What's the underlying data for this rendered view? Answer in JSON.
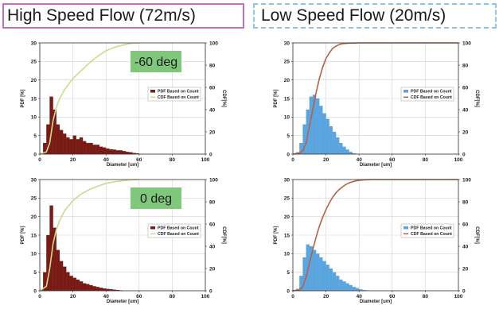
{
  "titles": {
    "left": "High Speed Flow (72m/s)",
    "right": "Low Speed Flow (20m/s)"
  },
  "chart_data": [
    {
      "type": "bar",
      "panel": "top-left",
      "xlabel": "Diameter [um]",
      "ylabel_left": "PDF [%]",
      "ylabel_right": "CDF[%]",
      "xlim": [
        0,
        100
      ],
      "ylim_left": [
        0,
        30
      ],
      "ylim_right": [
        0,
        100
      ],
      "x_ticks": [
        0,
        20,
        40,
        60,
        80,
        100
      ],
      "y_ticks_left": [
        0,
        5,
        10,
        15,
        20,
        25,
        30
      ],
      "y_ticks_right": [
        0,
        20,
        40,
        60,
        80,
        100
      ],
      "grid": true,
      "legend_position": "middle-right",
      "annotation": "-60 deg",
      "annotation_color": "#7fc77a",
      "bin_width": 2,
      "series": [
        {
          "name": "PDF Based on Count",
          "kind": "bar",
          "color": "#7a1a14",
          "x": [
            1,
            3,
            5,
            7,
            9,
            11,
            13,
            15,
            17,
            19,
            21,
            23,
            25,
            27,
            29,
            31,
            33,
            35,
            37,
            39,
            41,
            43,
            45,
            47,
            49,
            51,
            53,
            55,
            57,
            59
          ],
          "values": [
            0.3,
            3,
            8,
            15.5,
            12,
            8,
            6.5,
            5.5,
            4.5,
            4,
            5,
            4,
            4.5,
            3.5,
            3,
            3,
            2.5,
            2.5,
            2,
            1.8,
            1.5,
            1.3,
            1.2,
            1,
            1,
            0.8,
            0.6,
            0.5,
            0.3,
            0.2
          ]
        },
        {
          "name": "CDF Based on Count",
          "kind": "line",
          "color": "#c9dc8e",
          "x": [
            0,
            4,
            6,
            8,
            10,
            12,
            15,
            20,
            25,
            30,
            35,
            40,
            45,
            50,
            55,
            60
          ],
          "values": [
            0,
            2,
            10,
            30,
            42,
            50,
            58,
            68,
            75,
            82,
            88,
            93,
            96,
            98,
            99.5,
            100
          ]
        }
      ]
    },
    {
      "type": "bar",
      "panel": "top-right",
      "xlabel": "Diameter [um]",
      "ylabel_left": "PDF [%]",
      "ylabel_right": "CDF[%]",
      "xlim": [
        0,
        100
      ],
      "ylim_left": [
        0,
        30
      ],
      "ylim_right": [
        0,
        100
      ],
      "x_ticks": [
        0,
        20,
        40,
        60,
        80,
        100
      ],
      "y_ticks_left": [
        0,
        5,
        10,
        15,
        20,
        25,
        30
      ],
      "y_ticks_right": [
        0,
        20,
        40,
        60,
        80,
        100
      ],
      "grid": true,
      "legend_position": "middle-right",
      "bin_width": 2,
      "series": [
        {
          "name": "PDF Based on Count",
          "kind": "bar",
          "color": "#5aa5e0",
          "x": [
            3,
            5,
            7,
            9,
            11,
            13,
            15,
            17,
            19,
            21,
            23,
            25,
            27,
            29,
            31,
            33,
            35,
            37
          ],
          "values": [
            0.5,
            3,
            8,
            12,
            15.5,
            16,
            15,
            13,
            11,
            9.5,
            7.5,
            6,
            4.5,
            3,
            2,
            1.2,
            0.6,
            0.2
          ]
        },
        {
          "name": "CDF Based on Count",
          "kind": "line",
          "color": "#b86048",
          "x": [
            0,
            4,
            6,
            8,
            10,
            12,
            14,
            16,
            18,
            20,
            22,
            24,
            26,
            28,
            30,
            34,
            40,
            100
          ],
          "values": [
            0,
            1,
            3,
            10,
            25,
            40,
            55,
            68,
            78,
            86,
            91,
            95,
            97,
            98.5,
            99.3,
            99.8,
            100,
            100
          ]
        }
      ]
    },
    {
      "type": "bar",
      "panel": "bottom-left",
      "xlabel": "Diameter [um]",
      "ylabel_left": "PDF [%]",
      "ylabel_right": "CDF[%]",
      "xlim": [
        0,
        100
      ],
      "ylim_left": [
        0,
        30
      ],
      "ylim_right": [
        0,
        100
      ],
      "x_ticks": [
        0,
        20,
        40,
        60,
        80,
        100
      ],
      "y_ticks_left": [
        0,
        5,
        10,
        15,
        20,
        25,
        30
      ],
      "y_ticks_right": [
        0,
        20,
        40,
        60,
        80,
        100
      ],
      "grid": true,
      "legend_position": "middle-right",
      "annotation": "0 deg",
      "annotation_color": "#7fc77a",
      "bin_width": 2,
      "series": [
        {
          "name": "PDF Based on Count",
          "kind": "bar",
          "color": "#7a1a14",
          "x": [
            1,
            3,
            5,
            7,
            9,
            11,
            13,
            15,
            17,
            19,
            21,
            23,
            25,
            27,
            29,
            31,
            33,
            35,
            37,
            39,
            41,
            43,
            45,
            47,
            49
          ],
          "values": [
            0.3,
            5,
            15,
            23,
            17,
            11,
            8,
            6.5,
            5,
            4,
            3.5,
            3,
            2.5,
            2,
            1.8,
            1.5,
            1.2,
            1,
            0.8,
            0.6,
            0.5,
            0.4,
            0.3,
            0.2,
            0.1
          ]
        },
        {
          "name": "CDF Based on Count",
          "kind": "line",
          "color": "#c9dc8e",
          "x": [
            0,
            4,
            6,
            8,
            10,
            12,
            15,
            20,
            25,
            30,
            35,
            40,
            45,
            50,
            55,
            60
          ],
          "values": [
            0,
            4,
            20,
            42,
            55,
            63,
            72,
            81,
            87,
            91,
            94,
            96.5,
            98,
            99,
            99.7,
            100
          ]
        }
      ]
    },
    {
      "type": "bar",
      "panel": "bottom-right",
      "xlabel": "Diameter [um]",
      "ylabel_left": "PDF [%]",
      "ylabel_right": "CDF[%]",
      "xlim": [
        0,
        100
      ],
      "ylim_left": [
        0,
        30
      ],
      "ylim_right": [
        0,
        100
      ],
      "x_ticks": [
        0,
        20,
        40,
        60,
        80,
        100
      ],
      "y_ticks_left": [
        0,
        5,
        10,
        15,
        20,
        25,
        30
      ],
      "y_ticks_right": [
        0,
        20,
        40,
        60,
        80,
        100
      ],
      "grid": true,
      "legend_position": "middle-right",
      "bin_width": 2,
      "series": [
        {
          "name": "PDF Based on Count",
          "kind": "bar",
          "color": "#5aa5e0",
          "x": [
            3,
            5,
            7,
            9,
            11,
            13,
            15,
            17,
            19,
            21,
            23,
            25,
            27,
            29,
            31,
            33,
            35,
            37,
            39,
            41,
            43,
            45
          ],
          "values": [
            0.5,
            4,
            9,
            12.5,
            12,
            11,
            10,
            9,
            8,
            7,
            6,
            5,
            4,
            3,
            2.5,
            2,
            1.5,
            1,
            0.7,
            0.4,
            0.2,
            0.1
          ]
        },
        {
          "name": "CDF Based on Count",
          "kind": "line",
          "color": "#b86048",
          "x": [
            0,
            4,
            6,
            8,
            10,
            12,
            14,
            16,
            18,
            20,
            22,
            24,
            26,
            28,
            30,
            32,
            34,
            36,
            38,
            40,
            44,
            48,
            100
          ],
          "values": [
            0,
            1,
            4,
            12,
            25,
            37,
            48,
            58,
            66,
            73,
            79,
            84,
            88,
            91,
            93.5,
            95.5,
            97,
            98,
            98.8,
            99.3,
            99.8,
            100,
            100
          ]
        }
      ]
    }
  ]
}
